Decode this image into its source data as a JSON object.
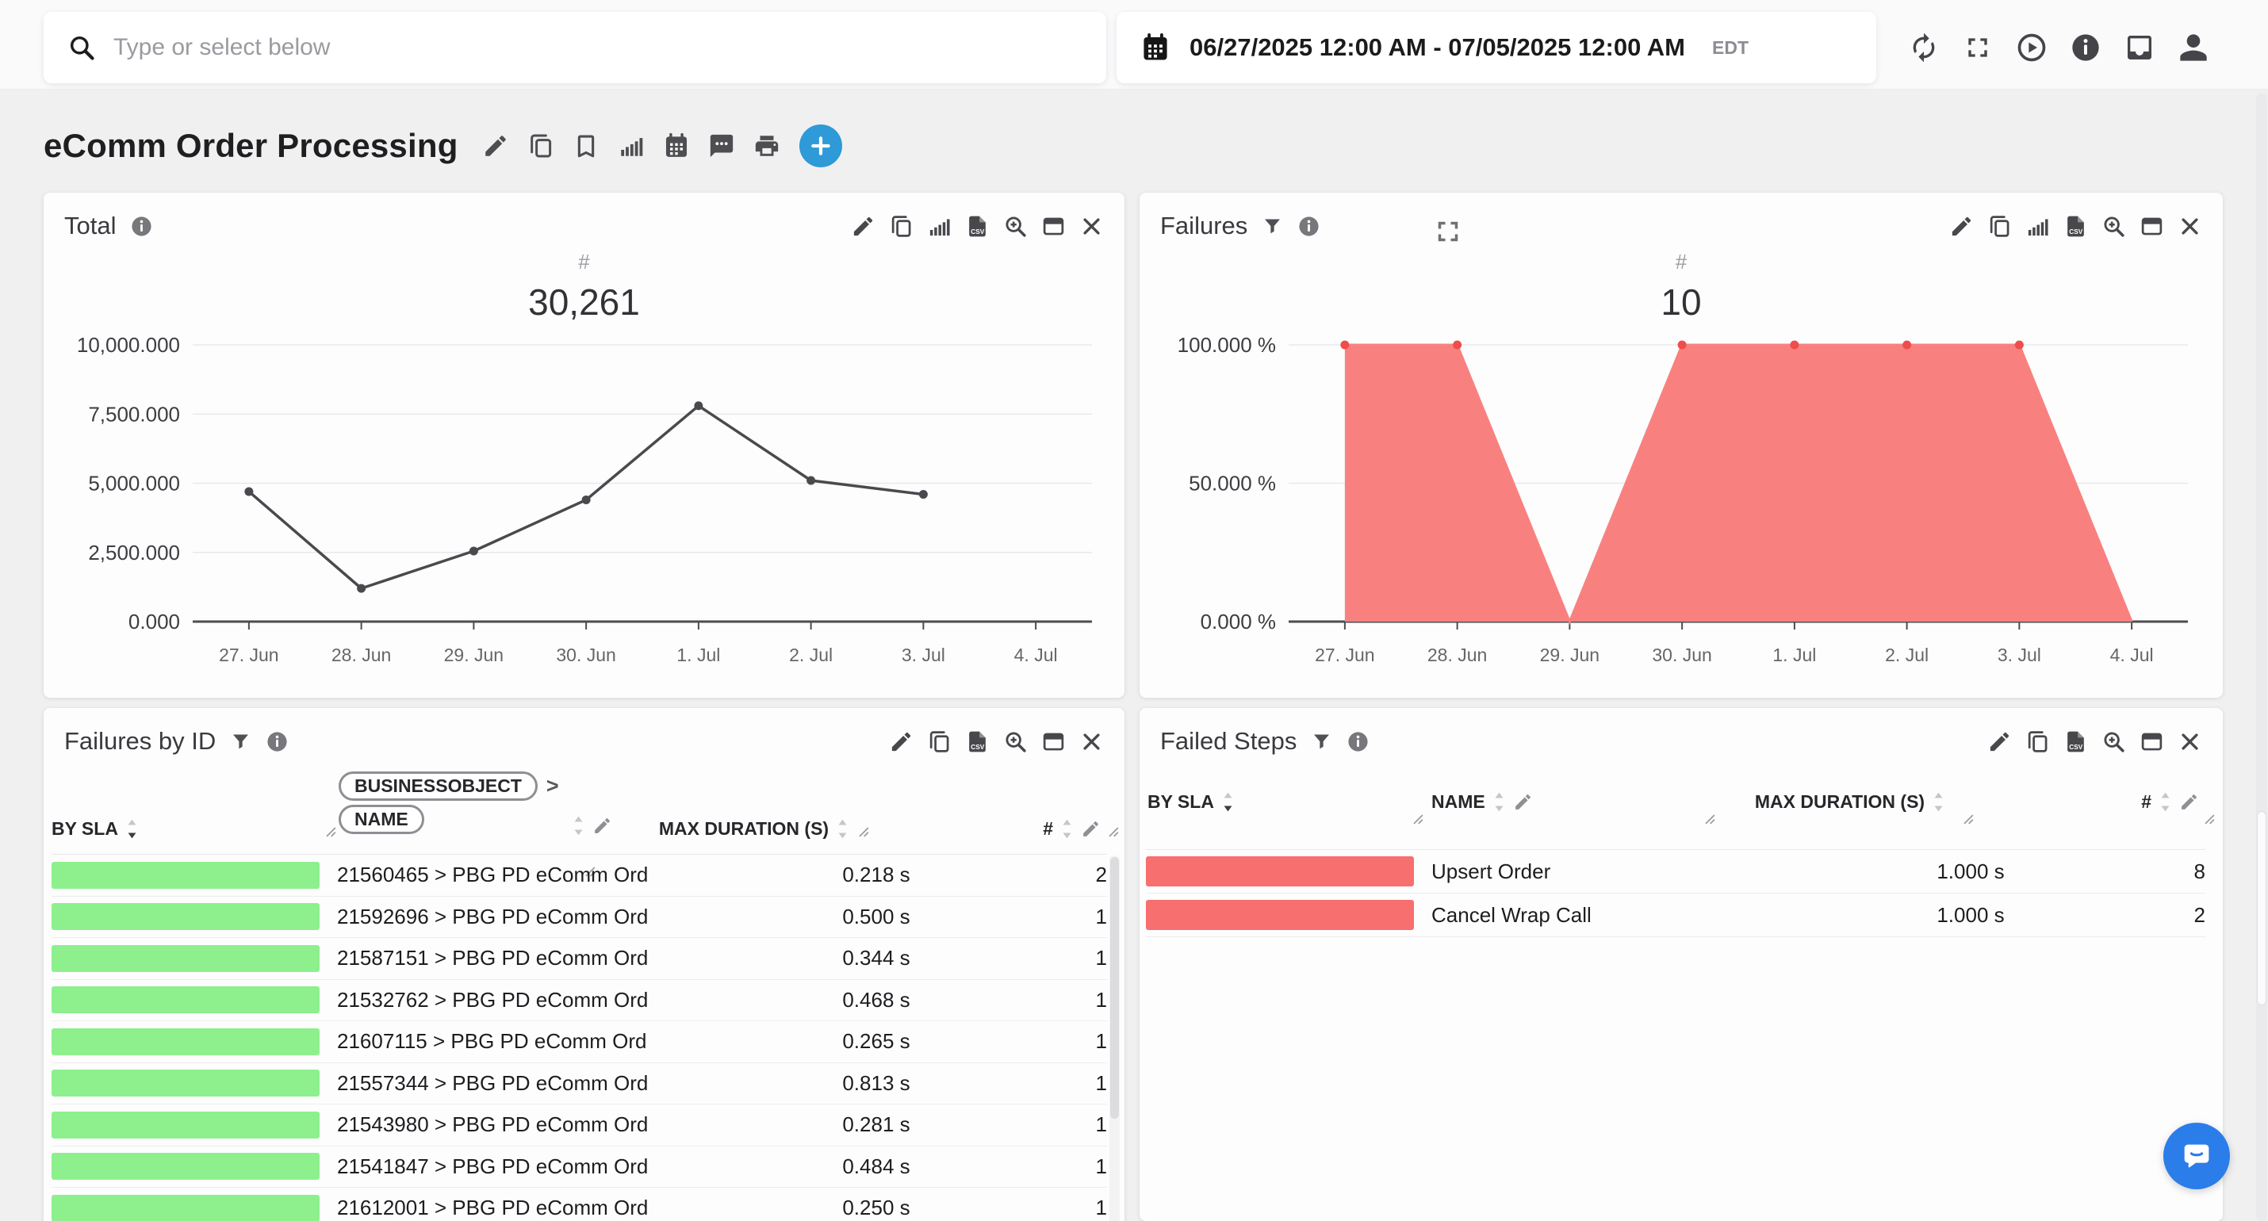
{
  "topbar": {
    "search_placeholder": "Type or select below",
    "date_range": "06/27/2025 12:00 AM - 07/05/2025 12:00 AM",
    "timezone": "EDT",
    "icons": [
      "refresh",
      "fullscreen",
      "play",
      "info",
      "inbox",
      "user"
    ]
  },
  "header": {
    "title": "eComm Order Processing",
    "tools": [
      "edit",
      "copy",
      "bookmark",
      "chart",
      "calendar",
      "comment",
      "print"
    ],
    "add_button_color": "#2e9ad7"
  },
  "panels": {
    "total": {
      "title": "Total",
      "actions": [
        "edit",
        "copy",
        "chart",
        "export-csv",
        "zoom",
        "window",
        "close"
      ]
    },
    "failures": {
      "title": "Failures",
      "actions": [
        "edit",
        "copy",
        "chart",
        "export-csv",
        "zoom",
        "window",
        "close"
      ]
    },
    "failures_by_id": {
      "title": "Failures by ID",
      "actions": [
        "edit",
        "copy",
        "export-csv",
        "zoom",
        "window",
        "close"
      ],
      "columns": {
        "sla": "BY SLA",
        "businessobject": "BUSINESSOBJECT",
        "name": "NAME",
        "max_duration": "MAX DURATION (S)",
        "count": "#"
      },
      "bar_color": "#8df08d",
      "rows": [
        {
          "id": "21560465 > PBG PD eComm Ord",
          "max_duration": "0.218 s",
          "count": "2"
        },
        {
          "id": "21592696 > PBG PD eComm Ord",
          "max_duration": "0.500 s",
          "count": "1"
        },
        {
          "id": "21587151 > PBG PD eComm Ord",
          "max_duration": "0.344 s",
          "count": "1"
        },
        {
          "id": "21532762 > PBG PD eComm Ord",
          "max_duration": "0.468 s",
          "count": "1"
        },
        {
          "id": "21607115 > PBG PD eComm Ord",
          "max_duration": "0.265 s",
          "count": "1"
        },
        {
          "id": "21557344 > PBG PD eComm Ord",
          "max_duration": "0.813 s",
          "count": "1"
        },
        {
          "id": "21543980 > PBG PD eComm Ord",
          "max_duration": "0.281 s",
          "count": "1"
        },
        {
          "id": "21541847 > PBG PD eComm Ord",
          "max_duration": "0.484 s",
          "count": "1"
        },
        {
          "id": "21612001 > PBG PD eComm Ord",
          "max_duration": "0.250 s",
          "count": "1"
        }
      ]
    },
    "failed_steps": {
      "title": "Failed Steps",
      "actions": [
        "edit",
        "copy",
        "export-csv",
        "zoom",
        "window",
        "close"
      ],
      "columns": {
        "sla": "BY SLA",
        "name": "NAME",
        "max_duration": "MAX DURATION (S)",
        "count": "#"
      },
      "bar_color": "#f76f6e",
      "rows": [
        {
          "name": "Upsert Order",
          "max_duration": "1.000 s",
          "count": "8"
        },
        {
          "name": "Cancel Wrap Call",
          "max_duration": "1.000 s",
          "count": "2"
        }
      ]
    }
  },
  "chart_data": [
    {
      "panel": "total",
      "type": "line",
      "title": "#",
      "value_label": "30,261",
      "categories": [
        "27. Jun",
        "28. Jun",
        "29. Jun",
        "30. Jun",
        "1. Jul",
        "2. Jul",
        "3. Jul",
        "4. Jul"
      ],
      "values": [
        4700,
        1200,
        2550,
        4400,
        7800,
        5100,
        4600,
        null
      ],
      "ylim": [
        0,
        10000
      ],
      "ytick_labels": [
        "10,000.000",
        "7,500.000",
        "5,000.000",
        "2,500.000",
        "0.000"
      ],
      "grid": true,
      "legend": "none",
      "line_color": "#4a4a4e",
      "marker_color": "#4a4a4e"
    },
    {
      "panel": "failures",
      "type": "area",
      "title": "#",
      "value_label": "10",
      "categories": [
        "27. Jun",
        "28. Jun",
        "29. Jun",
        "30. Jun",
        "1. Jul",
        "2. Jul",
        "3. Jul",
        "4. Jul"
      ],
      "values": [
        100,
        100,
        0,
        100,
        100,
        100,
        100,
        0
      ],
      "ylim": [
        0,
        100
      ],
      "ytick_labels": [
        "100.000 %",
        "50.000 %",
        "0.000 %"
      ],
      "grid": true,
      "legend": "none",
      "area_color": "#f8817f",
      "line_color": "#f8817f",
      "marker_color": "#ee4d4b"
    }
  ]
}
